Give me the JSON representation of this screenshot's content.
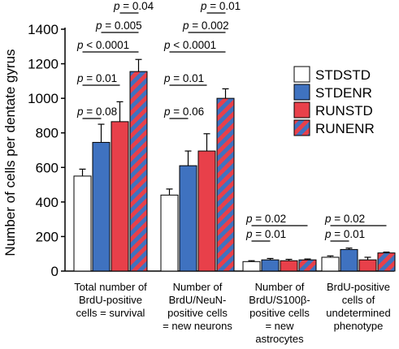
{
  "chart_data": {
    "type": "bar",
    "ylabel": "Number of cells per dentate gyrus",
    "ylim": [
      0,
      1400
    ],
    "yticks": [
      0,
      200,
      400,
      600,
      800,
      1000,
      1200,
      1400
    ],
    "legend_position": "right",
    "categories": [
      [
        "Total number of",
        "BrdU-positive",
        "cells = survival"
      ],
      [
        "Number of",
        "BrdU/NeuN-",
        "positive cells",
        "= new neurons"
      ],
      [
        "Number of",
        "BrdU/S100β-",
        "positive cells",
        "= new",
        "astrocytes"
      ],
      [
        "BrdU-positive",
        "cells of",
        "undetermined",
        "phenotype"
      ]
    ],
    "series": [
      {
        "name": "STDSTD",
        "fill": "#ffffff",
        "values": [
          550,
          440,
          55,
          80
        ],
        "errors": [
          40,
          35,
          5,
          8
        ]
      },
      {
        "name": "STDENR",
        "fill": "#3f72c0",
        "values": [
          745,
          610,
          65,
          125
        ],
        "errors": [
          105,
          85,
          8,
          8
        ]
      },
      {
        "name": "RUNSTD",
        "fill": "#e8404a",
        "values": [
          865,
          695,
          60,
          65
        ],
        "errors": [
          115,
          100,
          8,
          15
        ]
      },
      {
        "name": "RUNENR",
        "fill": "striped",
        "stripe_colors": [
          "#e8404a",
          "#3f72c0"
        ],
        "values": [
          1155,
          1000,
          65,
          105
        ],
        "errors": [
          70,
          55,
          5,
          5
        ]
      }
    ],
    "annotations": [
      {
        "group": 0,
        "from": 0,
        "to": 1,
        "text": "p = 0.08"
      },
      {
        "group": 0,
        "from": 0,
        "to": 2,
        "text": "p = 0.01"
      },
      {
        "group": 0,
        "from": 0,
        "to": 3,
        "text": "p < 0.0001"
      },
      {
        "group": 0,
        "from": 1,
        "to": 3,
        "text": "p = 0.005"
      },
      {
        "group": 0,
        "from": 2,
        "to": 3,
        "text": "p = 0.04"
      },
      {
        "group": 1,
        "from": 0,
        "to": 1,
        "text": "p = 0.06"
      },
      {
        "group": 1,
        "from": 0,
        "to": 2,
        "text": "p = 0.01"
      },
      {
        "group": 1,
        "from": 0,
        "to": 3,
        "text": "p < 0.0001"
      },
      {
        "group": 1,
        "from": 1,
        "to": 3,
        "text": "p = 0.002"
      },
      {
        "group": 1,
        "from": 2,
        "to": 3,
        "text": "p = 0.01"
      },
      {
        "group": 2,
        "from": 0,
        "to": 1,
        "text": "p = 0.01"
      },
      {
        "group": 2,
        "from": 0,
        "to": 3,
        "text": "p = 0.02"
      },
      {
        "group": 3,
        "from": 0,
        "to": 1,
        "text": "p = 0.01"
      },
      {
        "group": 3,
        "from": 0,
        "to": 3,
        "text": "p = 0.02"
      }
    ]
  }
}
